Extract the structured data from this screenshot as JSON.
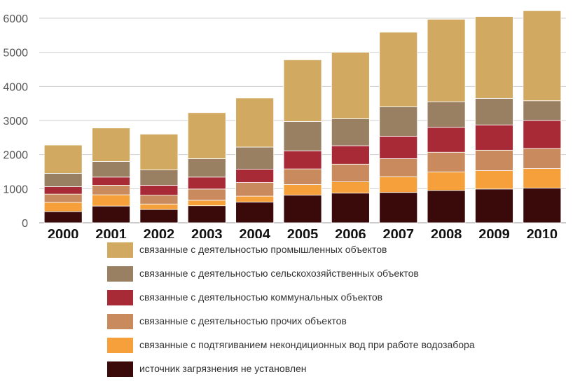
{
  "chart_data": {
    "type": "bar",
    "stacked": true,
    "categories": [
      "2000",
      "2001",
      "2002",
      "2003",
      "2004",
      "2005",
      "2006",
      "2007",
      "2008",
      "2009",
      "2010"
    ],
    "ylim": [
      0,
      6000
    ],
    "yticks": [
      0,
      1000,
      2000,
      3000,
      4000,
      5000,
      6000
    ],
    "grid": true,
    "legend_position": "bottom",
    "series": [
      {
        "name": "источник загрязнения не установлен",
        "color": "#3a0a0a",
        "values": [
          330,
          490,
          390,
          500,
          610,
          810,
          870,
          890,
          950,
          990,
          1020
        ]
      },
      {
        "name": "связанные с подтягиванием некондиционных вод при работе водозабора",
        "color": "#f5a03a",
        "values": [
          270,
          330,
          160,
          160,
          170,
          310,
          330,
          460,
          540,
          540,
          570
        ]
      },
      {
        "name": "связанные с деятельностью прочих объектов",
        "color": "#c98a5e",
        "values": [
          240,
          280,
          260,
          330,
          400,
          460,
          520,
          530,
          580,
          600,
          590
        ]
      },
      {
        "name": "связанные с деятельностью коммунальных объектов",
        "color": "#a82a36",
        "values": [
          220,
          240,
          290,
          350,
          390,
          530,
          540,
          660,
          730,
          740,
          820
        ]
      },
      {
        "name": "связанные с деятельностью сельскохозяйственных объектов",
        "color": "#9a8062",
        "values": [
          390,
          460,
          450,
          540,
          650,
          860,
          790,
          860,
          750,
          780,
          580
        ]
      },
      {
        "name": "связанные с деятельностью промышленных объектов",
        "color": "#d2a960",
        "values": [
          830,
          980,
          1050,
          1350,
          1440,
          1810,
          1950,
          2190,
          2420,
          2400,
          2640
        ]
      }
    ],
    "totals": [
      2280,
      2780,
      2600,
      3230,
      3660,
      4780,
      5000,
      5590,
      5970,
      6050,
      6220
    ]
  }
}
